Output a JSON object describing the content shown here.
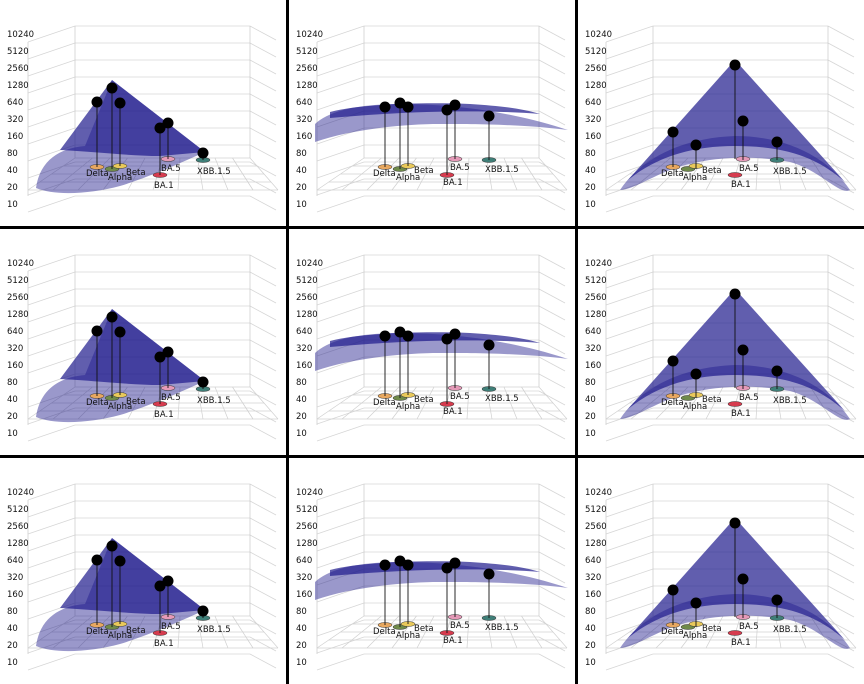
{
  "chart_data": {
    "type": "3d-scatter-surface",
    "layout": "3x3 grid",
    "z_axis": {
      "scale": "log2",
      "ticks": [
        "10",
        "20",
        "40",
        "80",
        "160",
        "320",
        "640",
        "1280",
        "2560",
        "5120",
        "10240"
      ]
    },
    "variants": [
      "Delta",
      "Alpha",
      "Beta",
      "BA.1",
      "BA.5",
      "XBB.1.5"
    ],
    "variant_colors": {
      "Delta": "#e8a860",
      "Alpha": "#6f8a4a",
      "Beta": "#e9c95a",
      "BA.1": "#d63b4e",
      "BA.5": "#e59ab8",
      "XBB.1.5": "#3f7f78"
    },
    "surface_color": "#1e1a8c",
    "point_color": "#000000",
    "panels": [
      {
        "view": "left",
        "points": {
          "Delta": 640,
          "Alpha": 1100,
          "Beta": 600,
          "BA.1": 220,
          "BA.5": 260,
          "XBB.1.5": 80
        }
      },
      {
        "view": "front",
        "points": {
          "Delta": 520,
          "Alpha": 620,
          "Beta": 540,
          "BA.1": 480,
          "BA.5": 560,
          "XBB.1.5": 360
        }
      },
      {
        "view": "right",
        "points": {
          "Delta": 180,
          "Alpha": 110,
          "Beta": 0,
          "BA.1": 0,
          "BA.5": 2700,
          "XBB.1.5": 300,
          "extra_right": 130
        }
      },
      {
        "view": "left",
        "points": {
          "Delta": 640,
          "Alpha": 1100,
          "Beta": 600,
          "BA.1": 220,
          "BA.5": 260,
          "XBB.1.5": 80
        }
      },
      {
        "view": "front",
        "points": {
          "Delta": 520,
          "Alpha": 620,
          "Beta": 540,
          "BA.1": 480,
          "BA.5": 560,
          "XBB.1.5": 360
        }
      },
      {
        "view": "right",
        "points": {
          "Delta": 180,
          "Alpha": 110,
          "Beta": 0,
          "BA.1": 0,
          "BA.5": 2700,
          "XBB.1.5": 300,
          "extra_right": 130
        }
      },
      {
        "view": "left",
        "points": {
          "Delta": 640,
          "Alpha": 1100,
          "Beta": 600,
          "BA.1": 220,
          "BA.5": 260,
          "XBB.1.5": 80
        }
      },
      {
        "view": "front",
        "points": {
          "Delta": 520,
          "Alpha": 620,
          "Beta": 540,
          "BA.1": 480,
          "BA.5": 560,
          "XBB.1.5": 360
        }
      },
      {
        "view": "right",
        "points": {
          "Delta": 180,
          "Alpha": 110,
          "Beta": 0,
          "BA.1": 0,
          "BA.5": 2700,
          "XBB.1.5": 300,
          "extra_right": 130
        }
      }
    ]
  }
}
